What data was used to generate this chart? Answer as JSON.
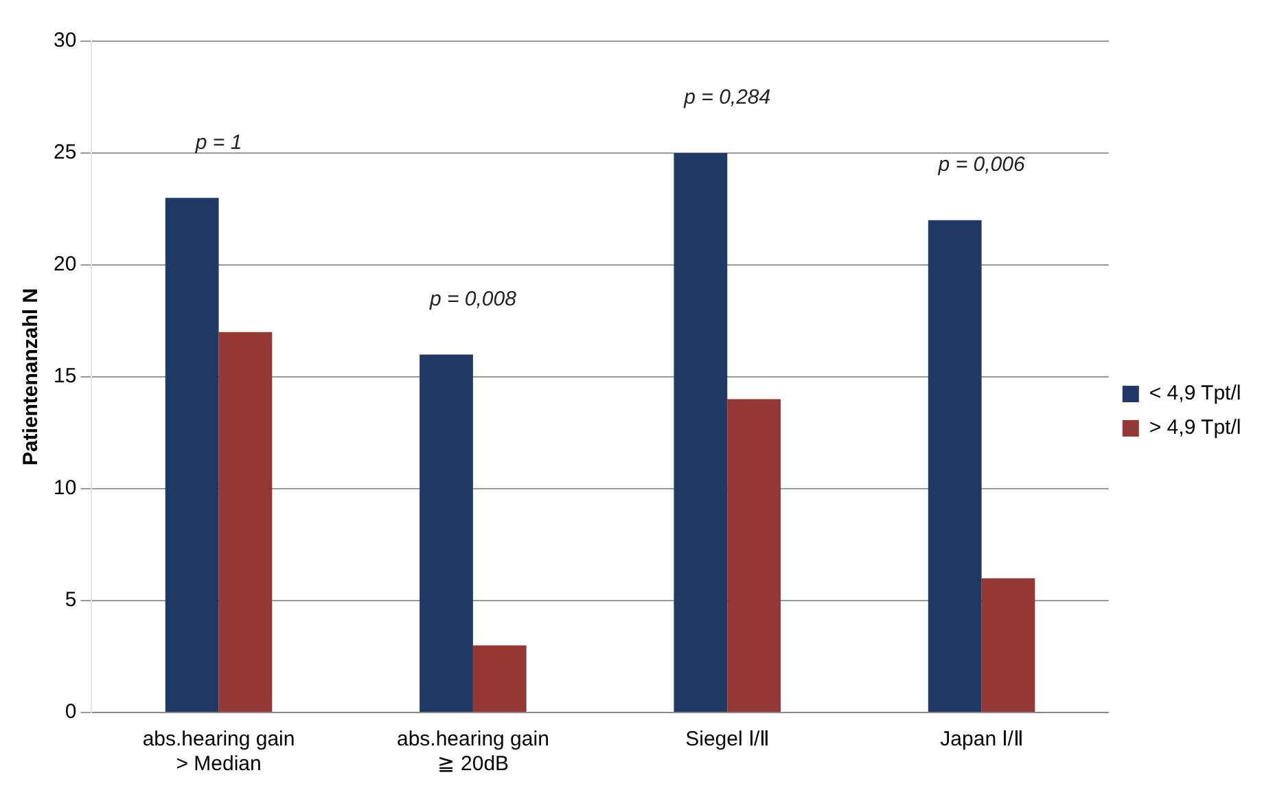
{
  "chart_data": {
    "type": "bar",
    "ylabel": "Patientenanzahl N",
    "categories": [
      "abs.hearing gain\n> Median",
      "abs.hearing gain\n≧ 20dB",
      "Siegel Ⅰ/Ⅱ",
      "Japan Ⅰ/Ⅱ"
    ],
    "series": [
      {
        "name": "< 4,9 Tpt/l",
        "color": "#1f3864",
        "values": [
          23,
          16,
          25,
          22
        ]
      },
      {
        "name": "> 4,9 Tpt/l",
        "color": "#953735",
        "values": [
          17,
          3,
          14,
          6
        ]
      }
    ],
    "ylim": [
      0,
      30
    ],
    "yticks": [
      0,
      5,
      10,
      15,
      20,
      25,
      30
    ],
    "grid": "y",
    "legend": "right",
    "annotations": [
      "p = 1",
      "p = 0,008",
      "p = 0,284",
      "p = 0,006"
    ]
  }
}
